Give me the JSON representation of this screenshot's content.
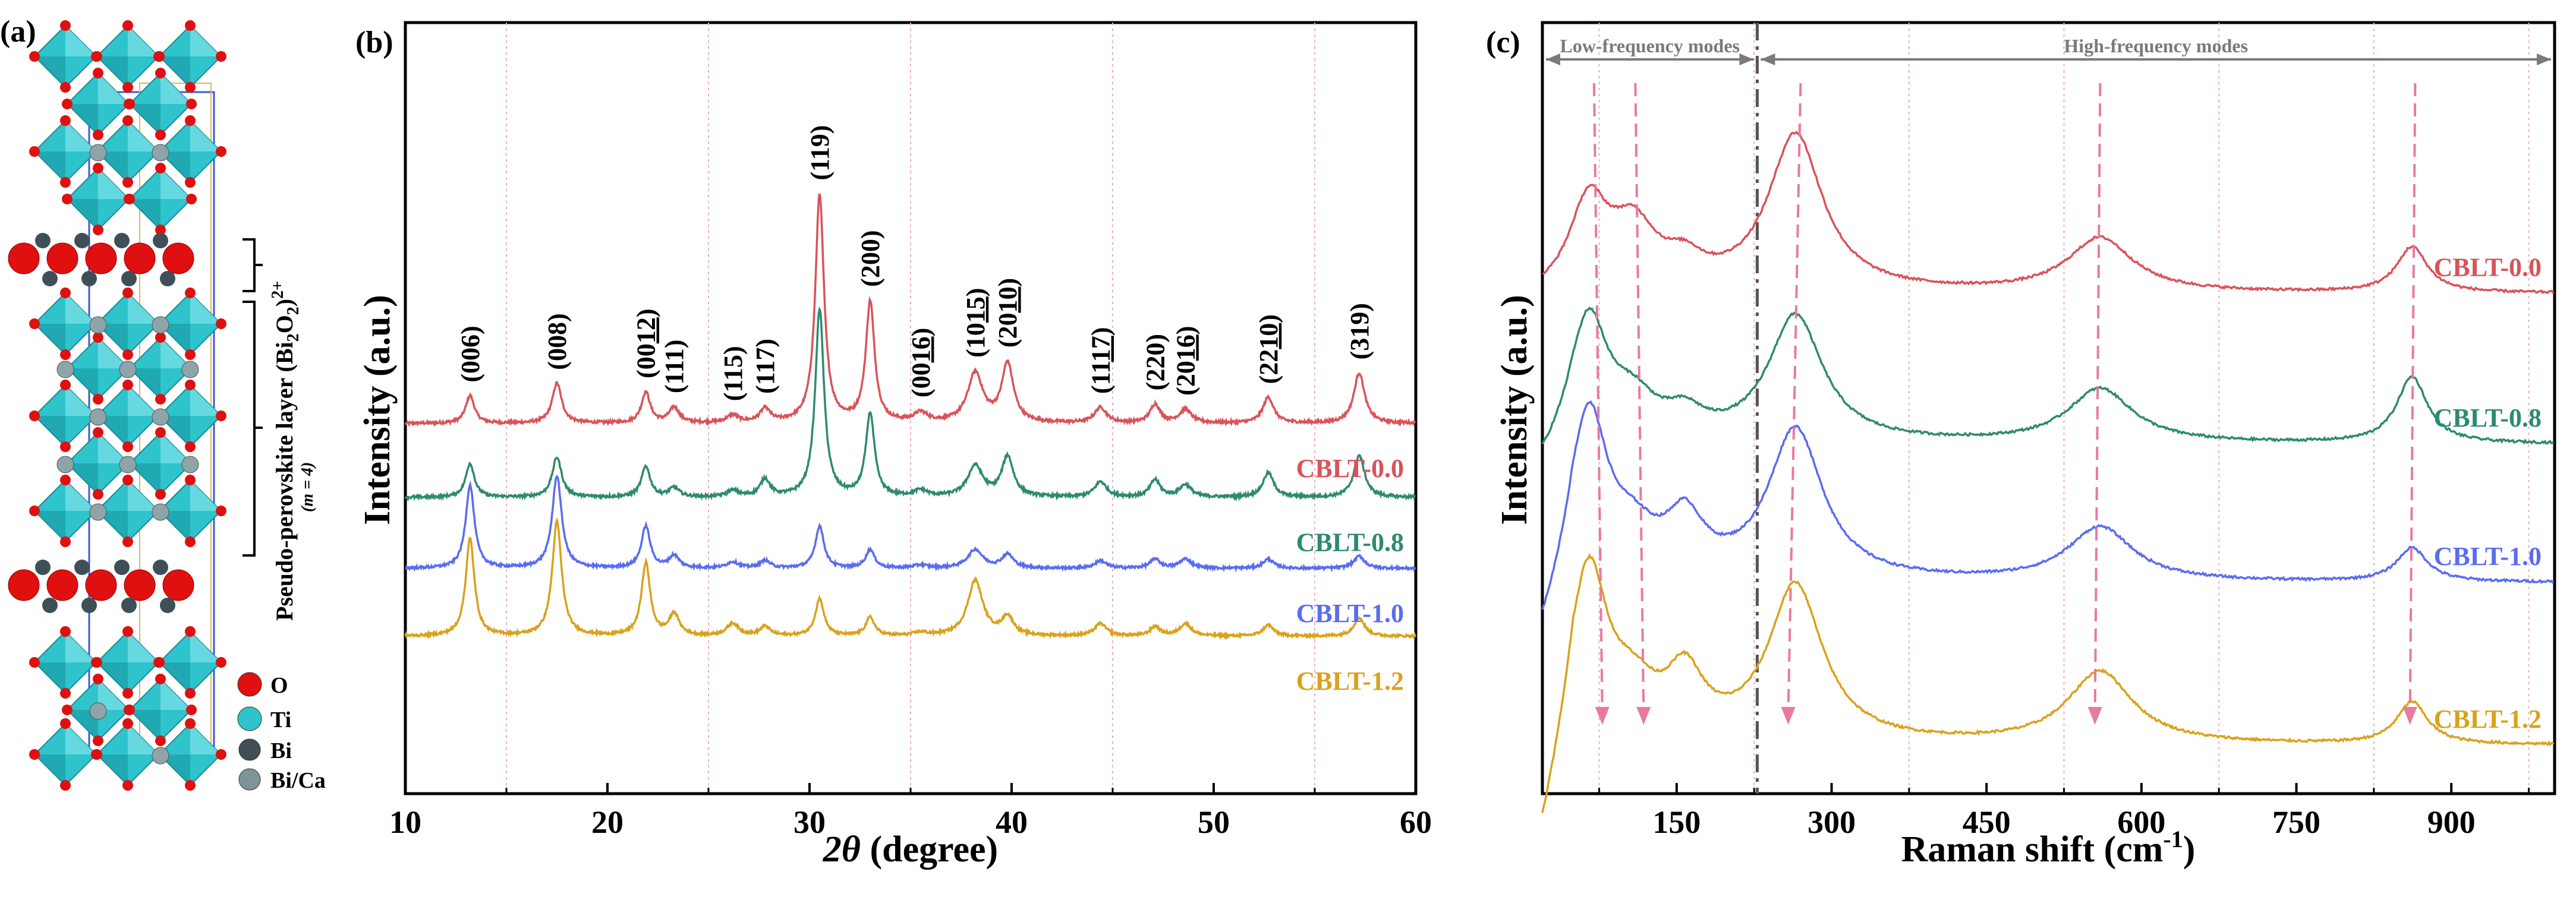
{
  "panels": [
    "(a)",
    "(b)",
    "(c)"
  ],
  "colors": {
    "CBLT-0.0": "#d9535a",
    "CBLT-0.8": "#2e8a6e",
    "CBLT-1.0": "#5a6cf0",
    "CBLT-1.2": "#d9a21c",
    "guide": "#e87aa0",
    "octahedron": "#2fc3cc"
  },
  "structure": {
    "legend": [
      {
        "symbol": "O",
        "color": "#e01010"
      },
      {
        "symbol": "Ti",
        "color": "#2fc3cc"
      },
      {
        "symbol": "Bi",
        "color": "#3f4f57"
      },
      {
        "symbol": "Bi/Ca",
        "color": "#7f9499"
      }
    ],
    "bi2o2_label_main": "(Bi",
    "bi2o2_label_sub1": "2",
    "bi2o2_label_o": "O",
    "bi2o2_label_sub2": "2",
    "bi2o2_label_close": ")",
    "bi2o2_label_sup": "2+",
    "perovskite_label": "Pseudo-perovskite layer",
    "m_label": "(m = 4)"
  },
  "chart_data": [
    {
      "type": "line",
      "panel": "(b)",
      "xlabel": "2θ (degree)",
      "xlabel_theta": "2θ",
      "xlabel_rest": " (degree)",
      "ylabel": "Intensity (a.u.)",
      "xlim": [
        10,
        60
      ],
      "xticks": [
        10,
        20,
        30,
        40,
        50,
        60
      ],
      "minor_gridlines_x": [
        15,
        25,
        35,
        45,
        55
      ],
      "series": [
        {
          "name": "CBLT-0.0",
          "offset": 6.0,
          "noise": 0.045
        },
        {
          "name": "CBLT-0.8",
          "offset": 4.8,
          "noise": 0.045
        },
        {
          "name": "CBLT-1.0",
          "offset": 3.65,
          "noise": 0.04
        },
        {
          "name": "CBLT-1.2",
          "offset": 2.55,
          "noise": 0.04
        }
      ],
      "peaks": {
        "positions": [
          13.2,
          17.5,
          21.9,
          23.3,
          26.2,
          27.8,
          30.5,
          33.0,
          35.5,
          38.2,
          39.8,
          44.4,
          47.1,
          48.6,
          52.7,
          57.2
        ],
        "widths": [
          0.26,
          0.28,
          0.26,
          0.3,
          0.35,
          0.3,
          0.26,
          0.26,
          0.4,
          0.45,
          0.35,
          0.35,
          0.3,
          0.35,
          0.32,
          0.32
        ],
        "CBLT-0.0": [
          0.45,
          0.65,
          0.5,
          0.25,
          0.12,
          0.22,
          3.7,
          1.95,
          0.15,
          0.8,
          0.95,
          0.25,
          0.3,
          0.22,
          0.42,
          0.82
        ],
        "CBLT-0.8": [
          0.55,
          0.65,
          0.5,
          0.15,
          0.1,
          0.28,
          3.05,
          1.35,
          0.1,
          0.5,
          0.65,
          0.25,
          0.28,
          0.2,
          0.4,
          0.68
        ],
        "CBLT-1.0": [
          1.35,
          1.5,
          0.68,
          0.2,
          0.1,
          0.12,
          0.68,
          0.3,
          0.05,
          0.3,
          0.22,
          0.12,
          0.15,
          0.15,
          0.15,
          0.2
        ],
        "CBLT-1.2": [
          1.58,
          1.85,
          1.18,
          0.35,
          0.2,
          0.15,
          0.6,
          0.3,
          0.05,
          0.9,
          0.3,
          0.2,
          0.15,
          0.2,
          0.18,
          0.3
        ]
      },
      "peak_labels": [
        {
          "x": 13.2,
          "text": "(006)"
        },
        {
          "x": 17.5,
          "text": "(008)"
        },
        {
          "x": 21.9,
          "text": "(0012)",
          "plain": "(00",
          "under": "12",
          "after": ")"
        },
        {
          "x": 23.3,
          "text": "(111)"
        },
        {
          "x": 26.2,
          "text": "(115)"
        },
        {
          "x": 27.8,
          "text": "(117)"
        },
        {
          "x": 30.5,
          "text": "(119)"
        },
        {
          "x": 33.0,
          "text": "(200)"
        },
        {
          "x": 35.5,
          "text": "(0016)",
          "plain": "(00",
          "under": "16",
          "after": ")"
        },
        {
          "x": 38.2,
          "text": "(1015)",
          "plain": "(10",
          "under": "15",
          "after": ")"
        },
        {
          "x": 39.8,
          "text": "(2010)",
          "plain": "(20",
          "under": "10",
          "after": ")"
        },
        {
          "x": 44.4,
          "text": "(1117)",
          "plain": "(11",
          "under": "17",
          "after": ")"
        },
        {
          "x": 47.1,
          "text": "(220)"
        },
        {
          "x": 48.6,
          "text": "(2016)",
          "plain": "(20",
          "under": "16",
          "after": ")"
        },
        {
          "x": 52.7,
          "text": "(2210)",
          "plain": "(22",
          "under": "10",
          "after": ")"
        },
        {
          "x": 57.2,
          "text": "(319)"
        }
      ]
    },
    {
      "type": "line",
      "panel": "(c)",
      "xlabel": "Raman shift (cm⁻¹)",
      "xlabel_main": "Raman shift (cm",
      "xlabel_sup": "-1",
      "xlabel_close": ")",
      "ylabel": "Intensity (a.u.)",
      "xlim": [
        20,
        1000
      ],
      "xticks": [
        150,
        300,
        450,
        600,
        750,
        900
      ],
      "minor_gridlines_x": [
        75,
        225,
        375,
        525,
        675,
        825,
        975
      ],
      "regions": [
        {
          "label": "Low-frequency modes",
          "from": 20,
          "to": 228
        },
        {
          "label": "High-frequency modes",
          "from": 228,
          "to": 1000
        }
      ],
      "region_divider_x": 228,
      "mode_arrows": [
        {
          "x_top": 70,
          "x_bottom": 78
        },
        {
          "x_top": 110,
          "x_bottom": 118
        },
        {
          "x_top": 270,
          "x_bottom": 258
        },
        {
          "x_top": 560,
          "x_bottom": 555
        },
        {
          "x_top": 865,
          "x_bottom": 860
        }
      ],
      "series": [
        {
          "name": "CBLT-0.0",
          "offset": 4.15,
          "noise": 0.02
        },
        {
          "name": "CBLT-0.8",
          "offset": 2.9,
          "noise": 0.02
        },
        {
          "name": "CBLT-1.0",
          "offset": 1.75,
          "noise": 0.02
        },
        {
          "name": "CBLT-1.2",
          "offset": 0.4,
          "noise": 0.02
        }
      ],
      "bands": {
        "positions": [
          65,
          108,
          158,
          265,
          560,
          862
        ],
        "widths": [
          22,
          28,
          22,
          32,
          38,
          18
        ],
        "CBLT-0.0": [
          0.7,
          0.5,
          0.18,
          1.3,
          0.45,
          0.38
        ],
        "CBLT-0.8": [
          1.0,
          0.3,
          0.18,
          1.05,
          0.45,
          0.55
        ],
        "CBLT-1.0": [
          1.35,
          0.3,
          0.45,
          1.25,
          0.45,
          0.28
        ],
        "CBLT-1.2": [
          1.4,
          0.35,
          0.5,
          1.3,
          0.6,
          0.35
        ]
      },
      "low_edge": {
        "CBLT-0.0": 0.05,
        "CBLT-0.8": 0.25,
        "CBLT-1.0": 0.55,
        "CBLT-1.2": 0.9
      }
    }
  ]
}
